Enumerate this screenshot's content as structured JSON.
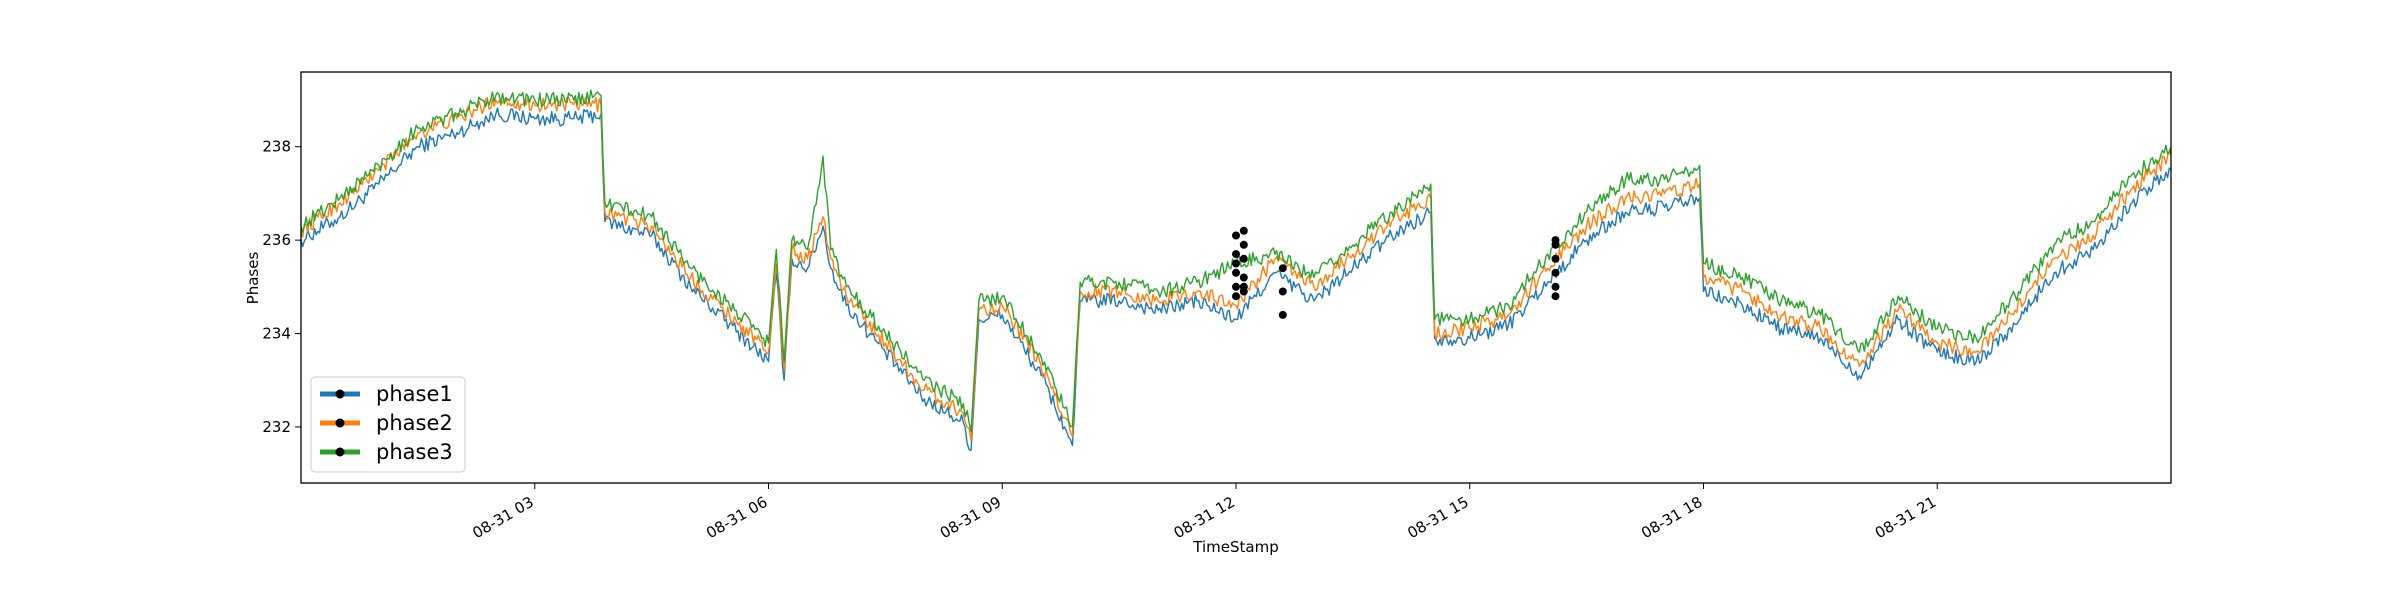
{
  "chart_data": {
    "type": "line",
    "title": "",
    "xlabel": "TimeStamp",
    "ylabel": "Phases",
    "xlim_hours": [
      0.0,
      24.0
    ],
    "ylim": [
      230.8,
      239.6
    ],
    "x_ticks": [
      {
        "hour": 3,
        "label": "08-31 03"
      },
      {
        "hour": 6,
        "label": "08-31 06"
      },
      {
        "hour": 9,
        "label": "08-31 09"
      },
      {
        "hour": 12,
        "label": "08-31 12"
      },
      {
        "hour": 15,
        "label": "08-31 15"
      },
      {
        "hour": 18,
        "label": "08-31 18"
      },
      {
        "hour": 21,
        "label": "08-31 21"
      }
    ],
    "y_ticks": [
      232,
      234,
      236,
      238
    ],
    "grid": false,
    "legend_position": "lower-left",
    "x_hours": [
      0.0,
      0.5,
      1.0,
      1.5,
      2.0,
      2.5,
      3.0,
      3.5,
      3.85,
      3.9,
      4.5,
      5.0,
      5.5,
      6.0,
      6.1,
      6.2,
      6.3,
      6.5,
      6.7,
      6.8,
      7.0,
      7.5,
      8.0,
      8.5,
      8.6,
      8.7,
      9.0,
      9.5,
      9.8,
      9.9,
      10.0,
      10.5,
      11.0,
      11.5,
      12.0,
      12.5,
      13.0,
      13.5,
      14.0,
      14.5,
      14.55,
      15.0,
      15.5,
      16.0,
      16.5,
      17.0,
      17.5,
      17.95,
      18.0,
      18.5,
      19.0,
      19.5,
      20.0,
      20.5,
      21.0,
      21.5,
      22.0,
      22.5,
      23.0,
      23.5,
      24.0
    ],
    "series": [
      {
        "name": "phase1",
        "color": "#1f77b4",
        "values": [
          236.0,
          236.5,
          237.2,
          238.0,
          238.3,
          238.7,
          238.6,
          238.6,
          238.7,
          236.4,
          236.1,
          235.0,
          234.2,
          233.4,
          235.3,
          233.0,
          235.6,
          235.4,
          236.3,
          235.4,
          234.6,
          233.6,
          232.6,
          232.1,
          231.5,
          234.3,
          234.4,
          233.1,
          232.0,
          231.6,
          234.7,
          234.7,
          234.5,
          234.7,
          234.3,
          235.3,
          234.7,
          235.4,
          236.1,
          236.6,
          233.9,
          233.9,
          234.2,
          235.1,
          236.0,
          236.6,
          236.7,
          236.9,
          234.9,
          234.6,
          234.1,
          233.9,
          233.1,
          234.3,
          233.6,
          233.4,
          234.2,
          235.3,
          235.8,
          236.8,
          237.5
        ]
      },
      {
        "name": "phase2",
        "color": "#ff7f0e",
        "values": [
          236.2,
          236.8,
          237.5,
          238.3,
          238.6,
          239.0,
          238.9,
          238.9,
          238.9,
          236.6,
          236.3,
          235.2,
          234.4,
          233.6,
          235.5,
          233.2,
          235.8,
          235.6,
          236.5,
          235.6,
          234.8,
          233.8,
          232.8,
          232.3,
          231.7,
          234.5,
          234.6,
          233.3,
          232.2,
          231.8,
          234.9,
          234.9,
          234.7,
          234.9,
          234.6,
          235.6,
          235.0,
          235.7,
          236.4,
          236.9,
          234.0,
          234.1,
          234.4,
          235.4,
          236.3,
          236.9,
          237.0,
          237.2,
          235.2,
          234.9,
          234.4,
          234.1,
          233.3,
          234.5,
          233.8,
          233.6,
          234.5,
          235.6,
          236.1,
          237.1,
          237.8
        ]
      },
      {
        "name": "phase3",
        "color": "#2ca02c",
        "values": [
          236.3,
          236.9,
          237.6,
          238.4,
          238.7,
          239.1,
          239.0,
          239.0,
          239.1,
          236.8,
          236.5,
          235.4,
          234.6,
          233.8,
          235.8,
          233.4,
          236.0,
          235.8,
          237.8,
          235.8,
          235.0,
          234.0,
          233.0,
          232.5,
          231.9,
          234.7,
          234.8,
          233.5,
          232.4,
          232.0,
          235.1,
          235.1,
          234.9,
          235.1,
          235.5,
          235.7,
          235.2,
          235.9,
          236.6,
          237.2,
          234.3,
          234.3,
          234.6,
          235.7,
          236.6,
          237.3,
          237.3,
          237.6,
          235.5,
          235.2,
          234.7,
          234.4,
          233.6,
          234.8,
          234.1,
          233.9,
          234.8,
          235.9,
          236.4,
          237.4,
          238.0
        ]
      }
    ],
    "markers": [
      {
        "x_hour": 12.0,
        "values": [
          235.0,
          235.5,
          236.1,
          235.7,
          235.3,
          234.8
        ]
      },
      {
        "x_hour": 12.1,
        "values": [
          235.2,
          235.9,
          236.2,
          234.9,
          235.6,
          235.0
        ]
      },
      {
        "x_hour": 12.6,
        "values": [
          234.4,
          235.4,
          234.9
        ]
      },
      {
        "x_hour": 16.1,
        "values": [
          234.8,
          235.3,
          235.6,
          236.0,
          235.9,
          235.0
        ]
      }
    ]
  }
}
